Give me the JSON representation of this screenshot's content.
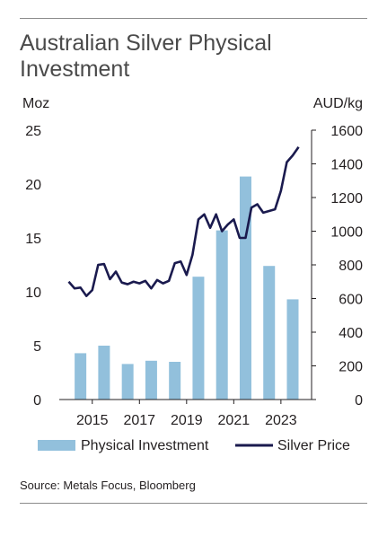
{
  "title_lines": [
    "Australian Silver Physical",
    "Investment"
  ],
  "source": "Source: Metals Focus, Bloomberg",
  "colors": {
    "bar": "#92c0dc",
    "line": "#1a1a4e",
    "text": "#231f20",
    "rule": "#8c8c8c"
  },
  "chart_data": {
    "type": "bar+line",
    "left_axis": {
      "label": "Moz",
      "min": 0,
      "max": 25,
      "ticks": [
        0,
        5,
        10,
        15,
        20,
        25
      ]
    },
    "right_axis": {
      "label": "AUD/kg",
      "min": 0,
      "max": 1600,
      "ticks": [
        0,
        200,
        400,
        600,
        800,
        1000,
        1200,
        1400,
        1600
      ]
    },
    "x_tick_labels": [
      "2015",
      "2017",
      "2019",
      "2021",
      "2023"
    ],
    "bars": {
      "name": "Physical Investment",
      "axis": "left",
      "x": [
        2014,
        2015,
        2016,
        2017,
        2018,
        2019,
        2020,
        2021,
        2022,
        2023
      ],
      "values": [
        4.3,
        5.0,
        3.3,
        3.6,
        3.5,
        11.4,
        15.7,
        20.7,
        12.4,
        9.3
      ]
    },
    "line": {
      "name": "Silver Price",
      "axis": "right",
      "x": [
        2014.0,
        2014.25,
        2014.5,
        2014.75,
        2015.0,
        2015.25,
        2015.5,
        2015.75,
        2016.0,
        2016.25,
        2016.5,
        2016.75,
        2017.0,
        2017.25,
        2017.5,
        2017.75,
        2018.0,
        2018.25,
        2018.5,
        2018.75,
        2019.0,
        2019.25,
        2019.5,
        2019.75,
        2020.0,
        2020.25,
        2020.5,
        2020.75,
        2021.0,
        2021.25,
        2021.5,
        2021.75,
        2022.0,
        2022.25,
        2022.5,
        2022.75,
        2023.0,
        2023.25,
        2023.5,
        2023.75
      ],
      "values": [
        700,
        660,
        665,
        615,
        650,
        800,
        805,
        715,
        760,
        695,
        685,
        700,
        690,
        705,
        660,
        710,
        690,
        705,
        810,
        820,
        740,
        860,
        1070,
        1100,
        1020,
        1100,
        1000,
        1040,
        1070,
        960,
        960,
        1140,
        1160,
        1110,
        1120,
        1130,
        1240,
        1410,
        1450,
        1500
      ]
    },
    "legend": {
      "position": "bottom",
      "items": [
        "Physical Investment",
        "Silver Price"
      ]
    },
    "grid": false
  }
}
